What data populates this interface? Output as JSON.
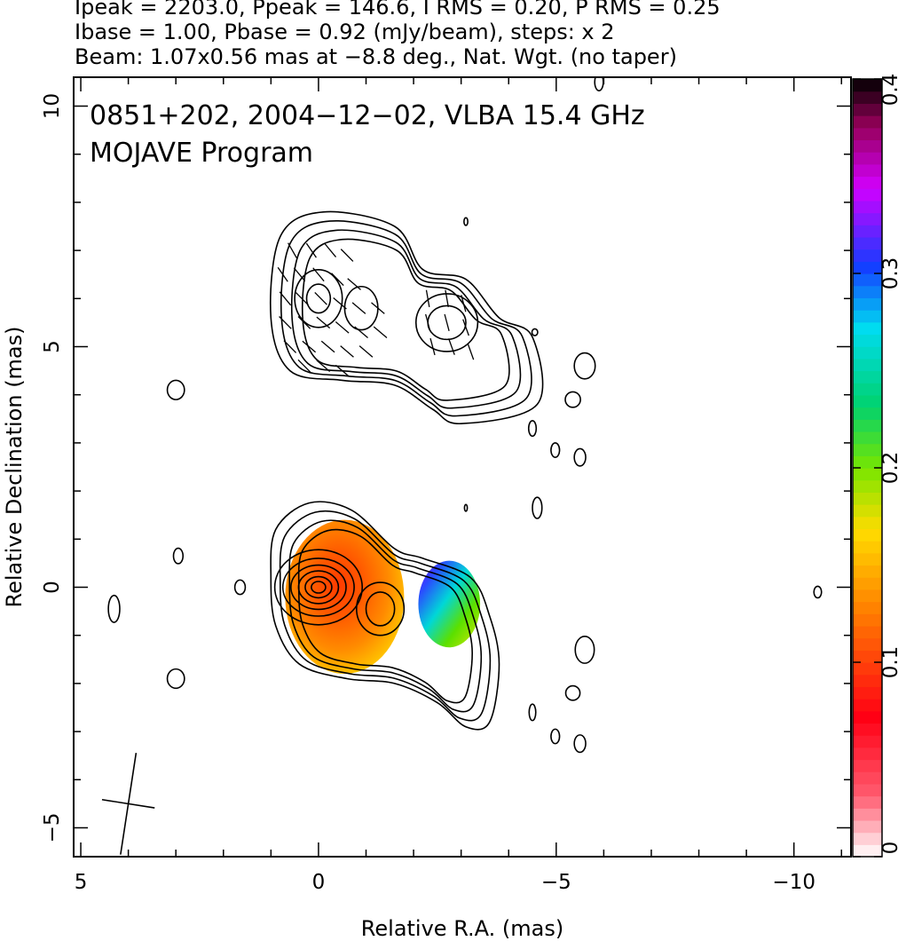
{
  "header": {
    "line1": "Ipeak = 2203.0, Ppeak = 146.6, I RMS = 0.20, P RMS = 0.25",
    "line2": "Ibase = 1.00, Pbase = 0.92 (mJy/beam), steps: x 2",
    "line3": "Beam: 1.07x0.56 mas at −8.8 deg., Nat. Wgt. (no taper)"
  },
  "chart_data": {
    "type": "heatmap",
    "title": "0851+202, 2004−12−02, VLBA 15.4 GHz",
    "subtitle": "MOJAVE Program",
    "xlabel": "Relative R.A. (mas)",
    "ylabel": "Relative Declination (mas)",
    "xlim": [
      5.15,
      -11.2
    ],
    "ylim": [
      -5.6,
      10.6
    ],
    "x_ticks": [
      {
        "value": 5,
        "label": "5"
      },
      {
        "value": 0,
        "label": "0"
      },
      {
        "value": -5,
        "label": "−5"
      },
      {
        "value": -10,
        "label": "−10"
      }
    ],
    "y_ticks": [
      {
        "value": 10,
        "label": "10"
      },
      {
        "value": 5,
        "label": "5"
      },
      {
        "value": 0,
        "label": "0"
      },
      {
        "value": -5,
        "label": "−5"
      }
    ],
    "colorbar": {
      "range": [
        0,
        0.4
      ],
      "ticks": [
        {
          "value": 0,
          "label": "0"
        },
        {
          "value": 0.1,
          "label": "0.1"
        },
        {
          "value": 0.2,
          "label": "0.2"
        },
        {
          "value": 0.3,
          "label": "0.3"
        },
        {
          "value": 0.4,
          "label": "0.4"
        }
      ]
    },
    "polarization_blobs": [
      {
        "cx": -0.55,
        "cy": -0.2,
        "rx": 1.25,
        "ry": 1.6,
        "value": 0.09
      },
      {
        "cx": -2.75,
        "cy": -0.35,
        "rx": 0.65,
        "ry": 0.9,
        "value": 0.21
      }
    ],
    "contour_sets": [
      {
        "cx": 0.0,
        "cy": 0.0,
        "radii": [
          [
            0.15,
            0.12
          ],
          [
            0.28,
            0.22
          ],
          [
            0.42,
            0.34
          ],
          [
            0.58,
            0.46
          ],
          [
            0.75,
            0.6
          ],
          [
            0.92,
            0.78
          ]
        ]
      },
      {
        "cx": -1.3,
        "cy": -0.45,
        "radii": [
          [
            0.3,
            0.35
          ],
          [
            0.5,
            0.55
          ]
        ]
      },
      {
        "cx": 0.0,
        "cy": 6.0,
        "radii": [
          [
            0.25,
            0.3
          ],
          [
            0.5,
            0.6
          ]
        ]
      },
      {
        "cx": -0.9,
        "cy": 5.8,
        "radii": [
          [
            0.35,
            0.45
          ]
        ]
      },
      {
        "cx": -2.7,
        "cy": 5.5,
        "radii": [
          [
            0.4,
            0.35
          ],
          [
            0.65,
            0.6
          ]
        ]
      }
    ],
    "envelopes": [
      {
        "name": "core",
        "points": [
          [
            1.0,
            0.2
          ],
          [
            0.9,
            1.2
          ],
          [
            0.2,
            1.75
          ],
          [
            -0.7,
            1.6
          ],
          [
            -1.6,
            0.8
          ],
          [
            -2.2,
            0.6
          ],
          [
            -3.2,
            0.2
          ],
          [
            -3.6,
            -0.6
          ],
          [
            -3.8,
            -1.6
          ],
          [
            -3.6,
            -2.8
          ],
          [
            -3.1,
            -2.9
          ],
          [
            -2.5,
            -2.4
          ],
          [
            -1.6,
            -2.0
          ],
          [
            -0.6,
            -1.9
          ],
          [
            0.4,
            -1.6
          ],
          [
            0.9,
            -0.8
          ]
        ]
      },
      {
        "name": "upper",
        "points": [
          [
            1.0,
            5.6
          ],
          [
            0.8,
            7.3
          ],
          [
            -0.1,
            7.8
          ],
          [
            -1.6,
            7.5
          ],
          [
            -2.2,
            6.6
          ],
          [
            -3.1,
            6.4
          ],
          [
            -3.8,
            5.6
          ],
          [
            -4.5,
            5.2
          ],
          [
            -4.6,
            3.8
          ],
          [
            -3.0,
            3.4
          ],
          [
            -2.4,
            3.7
          ],
          [
            -1.6,
            4.2
          ],
          [
            -0.5,
            4.3
          ],
          [
            0.6,
            4.5
          ]
        ]
      }
    ],
    "small_contours": [
      {
        "cx": 3.0,
        "cy": 4.1,
        "rx": 0.18,
        "ry": 0.2
      },
      {
        "cx": 2.95,
        "cy": 0.65,
        "rx": 0.1,
        "ry": 0.16
      },
      {
        "cx": 4.3,
        "cy": -0.45,
        "rx": 0.12,
        "ry": 0.28
      },
      {
        "cx": 1.65,
        "cy": 0.0,
        "rx": 0.11,
        "ry": 0.15
      },
      {
        "cx": 3.0,
        "cy": -1.9,
        "rx": 0.18,
        "ry": 0.2
      },
      {
        "cx": -3.1,
        "cy": 7.6,
        "rx": 0.04,
        "ry": 0.08
      },
      {
        "cx": -4.55,
        "cy": 5.3,
        "rx": 0.06,
        "ry": 0.07
      },
      {
        "cx": -5.6,
        "cy": 4.6,
        "rx": 0.22,
        "ry": 0.27
      },
      {
        "cx": -5.35,
        "cy": 3.9,
        "rx": 0.16,
        "ry": 0.16
      },
      {
        "cx": -4.5,
        "cy": 3.3,
        "rx": 0.08,
        "ry": 0.16
      },
      {
        "cx": -4.98,
        "cy": 2.85,
        "rx": 0.09,
        "ry": 0.15
      },
      {
        "cx": -5.5,
        "cy": 2.7,
        "rx": 0.12,
        "ry": 0.18
      },
      {
        "cx": -3.1,
        "cy": 1.65,
        "rx": 0.03,
        "ry": 0.07
      },
      {
        "cx": -4.6,
        "cy": 1.65,
        "rx": 0.1,
        "ry": 0.22
      },
      {
        "cx": -5.6,
        "cy": -1.3,
        "rx": 0.2,
        "ry": 0.28
      },
      {
        "cx": -5.35,
        "cy": -2.2,
        "rx": 0.15,
        "ry": 0.15
      },
      {
        "cx": -4.5,
        "cy": -2.6,
        "rx": 0.07,
        "ry": 0.17
      },
      {
        "cx": -4.98,
        "cy": -3.1,
        "rx": 0.09,
        "ry": 0.15
      },
      {
        "cx": -5.5,
        "cy": -3.25,
        "rx": 0.12,
        "ry": 0.18
      },
      {
        "cx": -5.9,
        "cy": 10.5,
        "rx": 0.09,
        "ry": 0.18
      },
      {
        "cx": -10.5,
        "cy": -0.1,
        "rx": 0.08,
        "ry": 0.12
      }
    ],
    "evpa_vectors": [
      [
        0.55,
        7.0,
        60
      ],
      [
        0.15,
        7.0,
        55
      ],
      [
        -0.25,
        7.0,
        50
      ],
      [
        -0.6,
        6.9,
        45
      ],
      [
        0.75,
        6.5,
        55
      ],
      [
        0.4,
        6.5,
        50
      ],
      [
        0.0,
        6.5,
        50
      ],
      [
        -0.4,
        6.4,
        45
      ],
      [
        -0.75,
        6.3,
        40
      ],
      [
        0.7,
        6.0,
        50
      ],
      [
        0.35,
        6.0,
        45
      ],
      [
        -0.05,
        6.0,
        45
      ],
      [
        -0.45,
        5.9,
        40
      ],
      [
        -0.85,
        5.8,
        40
      ],
      [
        -1.25,
        5.8,
        40
      ],
      [
        0.7,
        5.5,
        45
      ],
      [
        0.3,
        5.5,
        45
      ],
      [
        -0.1,
        5.5,
        40
      ],
      [
        -0.5,
        5.4,
        40
      ],
      [
        -0.9,
        5.3,
        40
      ],
      [
        -1.3,
        5.3,
        40
      ],
      [
        0.6,
        5.0,
        45
      ],
      [
        0.2,
        5.0,
        40
      ],
      [
        -0.2,
        5.0,
        40
      ],
      [
        -0.6,
        4.9,
        40
      ],
      [
        -1.0,
        4.9,
        40
      ],
      [
        0.3,
        4.6,
        45
      ],
      [
        -0.1,
        4.6,
        40
      ],
      [
        -0.5,
        4.5,
        40
      ],
      [
        -2.3,
        6.0,
        80
      ],
      [
        -2.7,
        6.0,
        80
      ],
      [
        -3.05,
        5.9,
        75
      ],
      [
        -2.3,
        5.5,
        75
      ],
      [
        -2.7,
        5.5,
        75
      ],
      [
        -3.1,
        5.4,
        70
      ],
      [
        -2.4,
        5.0,
        75
      ],
      [
        -2.8,
        5.0,
        70
      ],
      [
        -3.2,
        4.9,
        70
      ]
    ],
    "beam": {
      "cx": 4.0,
      "cy": -4.5,
      "major": 1.07,
      "minor": 0.56,
      "pa_deg": -8.8
    }
  }
}
